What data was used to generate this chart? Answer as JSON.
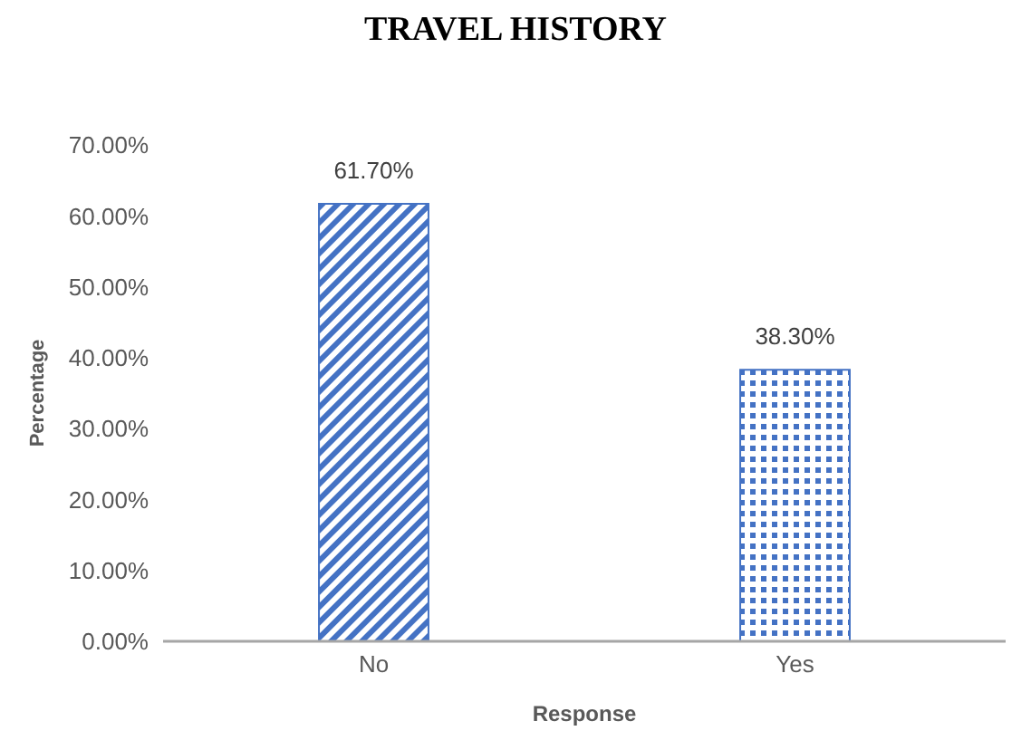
{
  "chart_data": {
    "type": "bar",
    "title": "TRAVEL HISTORY",
    "xlabel": "Response",
    "ylabel": "Percentage",
    "categories": [
      "No",
      "Yes"
    ],
    "values": [
      61.7,
      38.3
    ],
    "colors": [
      "#4472c4",
      "#4472c4"
    ],
    "value_labels": [
      "61.70%",
      "38.30%"
    ],
    "ylim": [
      0,
      70
    ],
    "yticks": [
      {
        "value": 0,
        "label": "0.00%"
      },
      {
        "value": 10,
        "label": "10.00%"
      },
      {
        "value": 20,
        "label": "20.00%"
      },
      {
        "value": 30,
        "label": "30.00%"
      },
      {
        "value": 40,
        "label": "40.00%"
      },
      {
        "value": 50,
        "label": "50.00%"
      },
      {
        "value": 60,
        "label": "60.00%"
      },
      {
        "value": 70,
        "label": "70.00%"
      }
    ],
    "grid": false,
    "legend": false
  }
}
